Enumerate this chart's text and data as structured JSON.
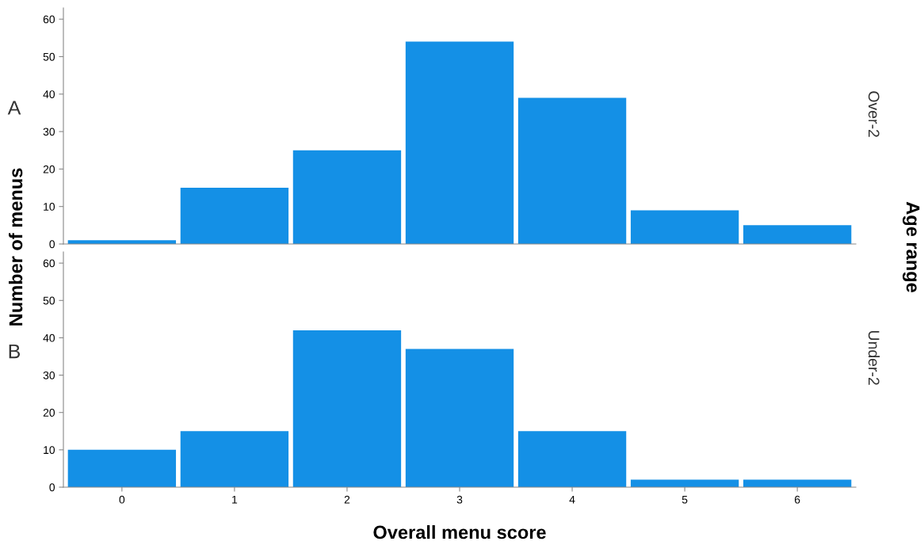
{
  "chart_data": [
    {
      "type": "bar",
      "categories": [
        "0",
        "1",
        "2",
        "3",
        "4",
        "5",
        "6"
      ],
      "values": [
        1,
        15,
        25,
        54,
        39,
        9,
        5
      ],
      "color": "#1490e6",
      "ylim": [
        0,
        63
      ],
      "yticks": [
        0,
        10,
        20,
        30,
        40,
        50,
        60
      ],
      "ylabel": "Number of menus",
      "y2label": "Over-2",
      "annotations": [
        "A",
        "Age range"
      ],
      "tick_labels": "y",
      "grid": false
    },
    {
      "type": "bar",
      "categories": [
        "0",
        "1",
        "2",
        "3",
        "4",
        "5",
        "6"
      ],
      "values": [
        10,
        15,
        42,
        37,
        15,
        2,
        2
      ],
      "color": "#1490e6",
      "ylim": [
        0,
        63
      ],
      "yticks": [
        0,
        10,
        20,
        30,
        40,
        50,
        60
      ],
      "xlabel": "Overall menu score",
      "y2label": "Under-2",
      "annotations": [
        "B"
      ],
      "grid": false
    }
  ]
}
